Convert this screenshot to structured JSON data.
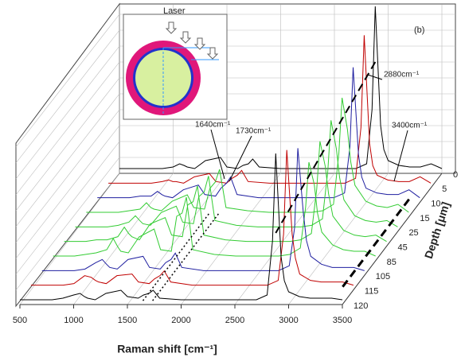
{
  "chart_data": {
    "type": "waterfall",
    "inset_title": "Laser",
    "panel_label": "(b)",
    "x_label": "Raman shift [cm⁻¹]",
    "depth_label": "Depth [μm]",
    "annotations": [
      "2880cm⁻¹",
      "1640cm⁻¹",
      "1730cm⁻¹",
      "3400cm⁻¹"
    ],
    "xlim": [
      500,
      3500
    ],
    "xticks": [
      500,
      1000,
      1500,
      2000,
      2500,
      3000,
      3500
    ],
    "ylim": [
      0,
      100
    ],
    "grid": true,
    "x": [
      500,
      600,
      700,
      800,
      900,
      1000,
      1060,
      1100,
      1130,
      1200,
      1300,
      1440,
      1500,
      1600,
      1650,
      1700,
      1740,
      1800,
      2000,
      2200,
      2400,
      2600,
      2700,
      2800,
      2850,
      2880,
      2930,
      2960,
      3000,
      3100,
      3200,
      3300,
      3400,
      3500
    ],
    "series": [
      {
        "name": "0",
        "color": "#000000",
        "values": [
          3,
          3,
          3,
          3,
          3,
          4,
          6,
          5,
          4,
          3,
          8,
          10,
          4,
          3,
          5,
          6,
          9,
          4,
          3,
          3,
          3,
          3,
          3,
          6,
          40,
          105,
          30,
          15,
          8,
          5,
          4,
          4,
          6,
          3
        ]
      },
      {
        "name": "5",
        "color": "#c00000",
        "values": [
          3,
          3,
          3,
          3,
          3,
          4,
          5,
          4,
          4,
          3,
          7,
          9,
          4,
          3,
          6,
          8,
          11,
          4,
          3,
          3,
          3,
          3,
          3,
          6,
          38,
          96,
          28,
          14,
          8,
          5,
          4,
          4,
          7,
          3
        ]
      },
      {
        "name": "10",
        "color": "#1f1fa0",
        "values": [
          3,
          3,
          3,
          3,
          4,
          4,
          7,
          5,
          4,
          3,
          8,
          11,
          5,
          4,
          9,
          12,
          16,
          5,
          3,
          3,
          3,
          3,
          3,
          6,
          35,
          85,
          30,
          16,
          9,
          6,
          5,
          5,
          8,
          3
        ]
      },
      {
        "name": "15",
        "color": "#33cc33",
        "values": [
          3,
          3,
          3,
          3,
          4,
          5,
          9,
          6,
          5,
          4,
          10,
          14,
          6,
          5,
          18,
          22,
          30,
          6,
          4,
          3,
          3,
          3,
          4,
          8,
          40,
          75,
          55,
          35,
          20,
          10,
          7,
          6,
          8,
          3
        ]
      },
      {
        "name": "25",
        "color": "#33cc33",
        "values": [
          3,
          3,
          3,
          3,
          4,
          6,
          10,
          7,
          5,
          4,
          12,
          16,
          6,
          5,
          22,
          25,
          35,
          7,
          4,
          3,
          3,
          3,
          4,
          8,
          38,
          70,
          52,
          34,
          20,
          10,
          7,
          6,
          7,
          3
        ]
      },
      {
        "name": "45",
        "color": "#33cc33",
        "values": [
          3,
          3,
          3,
          4,
          4,
          6,
          12,
          8,
          6,
          4,
          14,
          18,
          7,
          6,
          26,
          28,
          38,
          7,
          4,
          3,
          3,
          3,
          4,
          8,
          36,
          66,
          50,
          33,
          19,
          10,
          7,
          6,
          7,
          3
        ]
      },
      {
        "name": "85",
        "color": "#33cc33",
        "values": [
          3,
          3,
          3,
          4,
          5,
          7,
          14,
          9,
          6,
          5,
          15,
          20,
          7,
          6,
          28,
          30,
          40,
          7,
          4,
          3,
          3,
          3,
          4,
          8,
          34,
          62,
          48,
          30,
          18,
          10,
          7,
          6,
          6,
          3
        ]
      },
      {
        "name": "105",
        "color": "#1f1fa0",
        "values": [
          3,
          3,
          3,
          3,
          4,
          8,
          10,
          7,
          5,
          4,
          10,
          12,
          5,
          4,
          8,
          10,
          14,
          5,
          3,
          3,
          3,
          3,
          3,
          6,
          30,
          80,
          40,
          22,
          12,
          7,
          5,
          5,
          5,
          3
        ]
      },
      {
        "name": "115",
        "color": "#c00000",
        "values": [
          3,
          3,
          3,
          3,
          4,
          9,
          8,
          6,
          5,
          4,
          9,
          10,
          5,
          4,
          7,
          9,
          12,
          5,
          3,
          3,
          3,
          3,
          3,
          6,
          35,
          88,
          35,
          20,
          10,
          6,
          5,
          5,
          5,
          3
        ]
      },
      {
        "name": "120",
        "color": "#000000",
        "values": [
          3,
          3,
          3,
          3,
          4,
          6,
          7,
          5,
          4,
          3,
          7,
          9,
          5,
          4,
          6,
          7,
          9,
          4,
          3,
          3,
          3,
          3,
          3,
          6,
          40,
          95,
          30,
          15,
          8,
          5,
          4,
          4,
          4,
          3
        ]
      }
    ]
  }
}
